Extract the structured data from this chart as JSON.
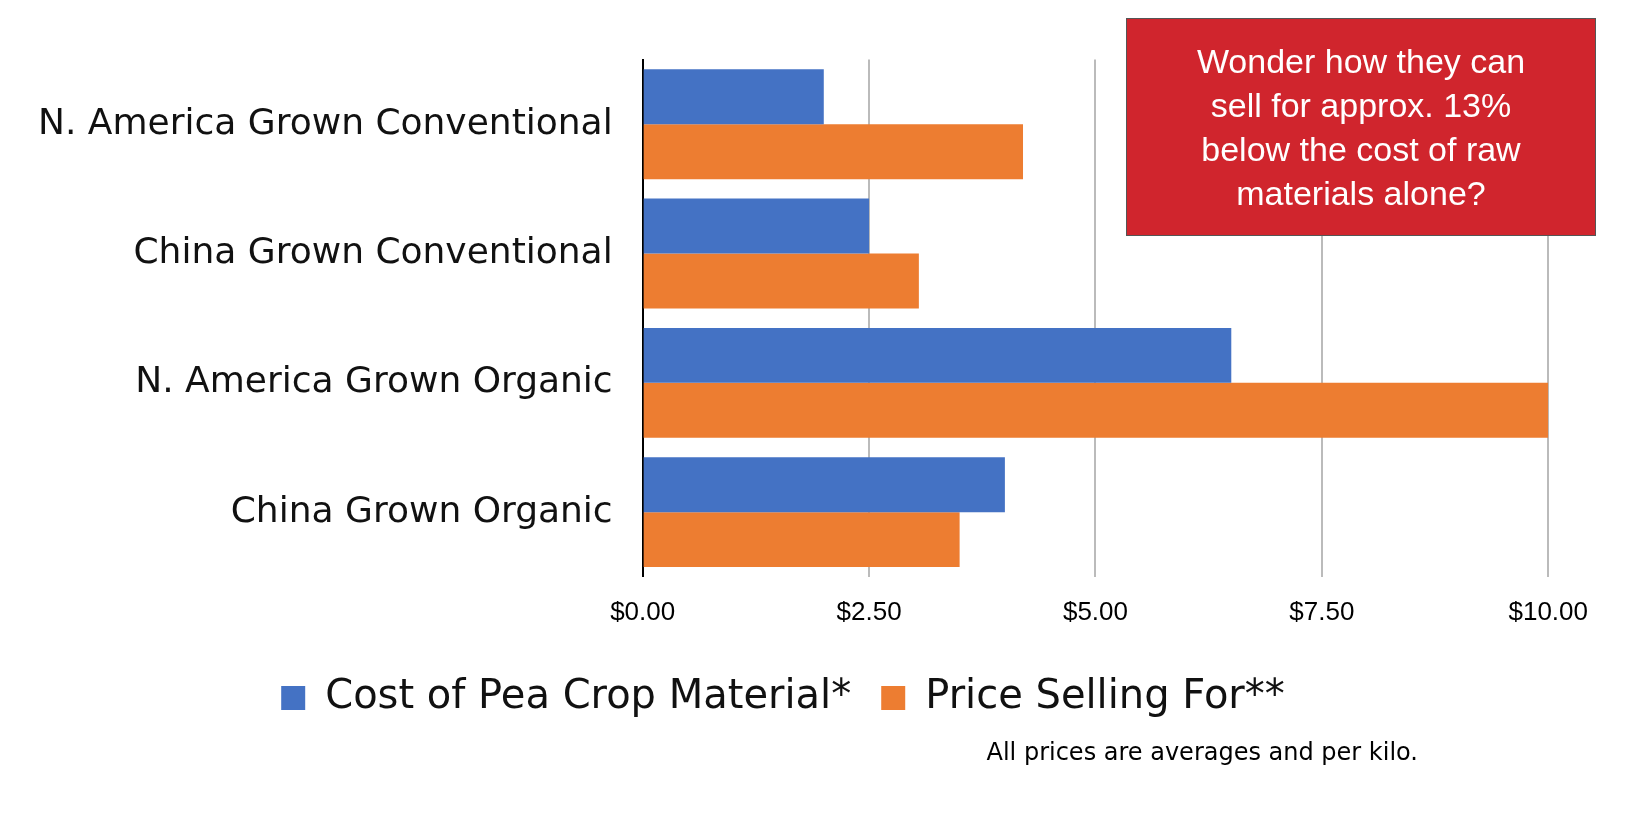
{
  "chart_data": {
    "type": "bar",
    "orientation": "horizontal",
    "categories": [
      "N. America Grown Conventional",
      "China Grown Conventional",
      "N. America Grown Organic",
      "China Grown Organic"
    ],
    "series": [
      {
        "name": "Cost of Pea Crop Material*",
        "color": "#4472c4",
        "values": [
          2.0,
          2.5,
          6.5,
          4.0
        ]
      },
      {
        "name": "Price Selling For**",
        "color": "#ed7d31",
        "values": [
          4.2,
          3.05,
          10.0,
          3.5
        ]
      }
    ],
    "xlim": [
      0,
      10
    ],
    "xticks": [
      {
        "value": 0,
        "label": "$0.00"
      },
      {
        "value": 2.5,
        "label": "$2.50"
      },
      {
        "value": 5,
        "label": "$5.00"
      },
      {
        "value": 7.5,
        "label": "$7.50"
      },
      {
        "value": 10,
        "label": "$10.00"
      }
    ],
    "grid": "x",
    "legend": "bottom",
    "annotations": [
      "Wonder how they can sell for approx. 13% below the cost of raw materials alone?",
      "All prices are averages and per kilo."
    ]
  }
}
